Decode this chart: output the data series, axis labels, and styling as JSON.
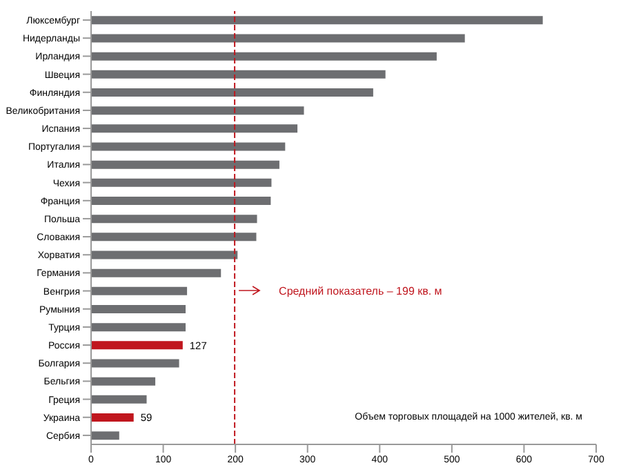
{
  "chart_data": {
    "type": "bar",
    "orientation": "horizontal",
    "categories": [
      "Люксембург",
      "Нидерланды",
      "Ирландия",
      "Швеция",
      "Финляндия",
      "Великобритания",
      "Испания",
      "Португалия",
      "Италия",
      "Чехия",
      "Франция",
      "Польша",
      "Словакия",
      "Хорватия",
      "Германия",
      "Венгрия",
      "Румыния",
      "Турция",
      "Россия",
      "Болгария",
      "Бельгия",
      "Греция",
      "Украина",
      "Сербия"
    ],
    "values": [
      626,
      518,
      479,
      408,
      391,
      295,
      286,
      269,
      261,
      250,
      249,
      230,
      229,
      203,
      180,
      133,
      131,
      131,
      127,
      122,
      89,
      77,
      59,
      39
    ],
    "colors": [
      "#6d6e71",
      "#6d6e71",
      "#6d6e71",
      "#6d6e71",
      "#6d6e71",
      "#6d6e71",
      "#6d6e71",
      "#6d6e71",
      "#6d6e71",
      "#6d6e71",
      "#6d6e71",
      "#6d6e71",
      "#6d6e71",
      "#6d6e71",
      "#6d6e71",
      "#6d6e71",
      "#6d6e71",
      "#6d6e71",
      "#c0161e",
      "#6d6e71",
      "#6d6e71",
      "#6d6e71",
      "#c0161e",
      "#6d6e71"
    ],
    "value_labels": [
      null,
      null,
      null,
      null,
      null,
      null,
      null,
      null,
      null,
      null,
      null,
      null,
      null,
      null,
      null,
      null,
      null,
      null,
      "127",
      null,
      null,
      null,
      "59",
      null
    ],
    "xlim": [
      0,
      700
    ],
    "xticks": [
      0,
      100,
      200,
      300,
      400,
      500,
      600,
      700
    ],
    "ref_lines": [
      {
        "axis": "x",
        "value": 199,
        "label": "Средний показатель – 199 кв. м",
        "color": "#c0161e",
        "line_style": "dashed"
      }
    ],
    "annotations": [
      "Объем торговых площадей на 1000 жителей, кв. м"
    ],
    "grid": false
  }
}
